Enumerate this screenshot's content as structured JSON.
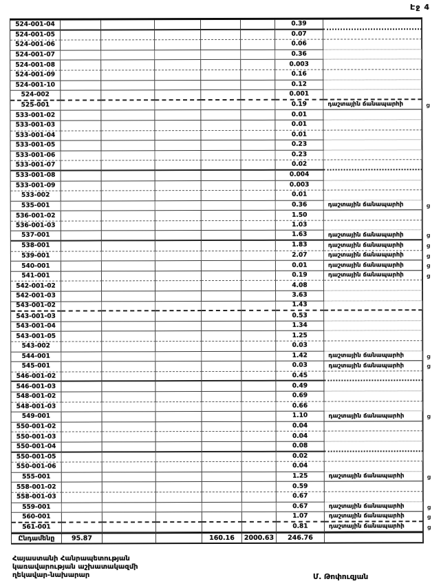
{
  "page": {
    "label": "Էջ 4"
  },
  "colors": {
    "paper": "#ffffff",
    "ink": "#111111",
    "grid_line": "#3c3c3c"
  },
  "note_text": "դաշտային ճանապարհի",
  "table": {
    "rows": [
      {
        "code": "524-001-04",
        "value": "0.39"
      },
      {
        "code": "524-001-05",
        "value": "0.07"
      },
      {
        "code": "524-001-06",
        "value": "0.06"
      },
      {
        "code": "524-001-07",
        "value": "0.36"
      },
      {
        "code": "524-001-08",
        "value": "0.003"
      },
      {
        "code": "524-001-09",
        "value": "0.16"
      },
      {
        "code": "524-001-10",
        "value": "0.12"
      },
      {
        "code": "524-002",
        "value": "0.001"
      },
      {
        "code": "525-001",
        "value": "0.19",
        "note": "դաշտային ճանապարհի",
        "mark": "ց"
      },
      {
        "code": "533-001-02",
        "value": "0.01"
      },
      {
        "code": "533-001-03",
        "value": "0.01"
      },
      {
        "code": "533-001-04",
        "value": "0.01"
      },
      {
        "code": "533-001-05",
        "value": "0.23"
      },
      {
        "code": "533-001-06",
        "value": "0.23"
      },
      {
        "code": "533-001-07",
        "value": "0.02"
      },
      {
        "code": "533-001-08",
        "value": "0.004"
      },
      {
        "code": "533-001-09",
        "value": "0.003"
      },
      {
        "code": "533-002",
        "value": "0.01"
      },
      {
        "code": "535-001",
        "value": "0.36",
        "note": "դաշտային ճանապարհի",
        "mark": "ց"
      },
      {
        "code": "536-001-02",
        "value": "1.50"
      },
      {
        "code": "536-001-03",
        "value": "1.03"
      },
      {
        "code": "537-001",
        "value": "1.63",
        "note": "դաշտային ճանապարհի",
        "mark": "ց"
      },
      {
        "code": "538-001",
        "value": "1.83",
        "note": "դաշտային ճանապարհի",
        "mark": "ց"
      },
      {
        "code": "539-001",
        "value": "2.07",
        "note": "դաշտային ճանապարհի",
        "mark": "ց"
      },
      {
        "code": "540-001",
        "value": "0.01",
        "note": "դաշտային ճանապարհի",
        "mark": "ց"
      },
      {
        "code": "541-001",
        "value": "0.19",
        "note": "դաշտային ճանապարհի",
        "mark": "ց"
      },
      {
        "code": "542-001-02",
        "value": "4.08"
      },
      {
        "code": "542-001-03",
        "value": "3.63"
      },
      {
        "code": "543-001-02",
        "value": "1.43"
      },
      {
        "code": "543-001-03",
        "value": "0.53"
      },
      {
        "code": "543-001-04",
        "value": "1.34"
      },
      {
        "code": "543-001-05",
        "value": "1.25"
      },
      {
        "code": "543-002",
        "value": "0.03"
      },
      {
        "code": "544-001",
        "value": "1.42",
        "note": "դաշտային ճանապարհի",
        "mark": "ց"
      },
      {
        "code": "545-001",
        "value": "0.03",
        "note": "դաշտային ճանապարհի",
        "mark": "ց"
      },
      {
        "code": "546-001-02",
        "value": "0.45"
      },
      {
        "code": "546-001-03",
        "value": "0.49"
      },
      {
        "code": "548-001-02",
        "value": "0.69"
      },
      {
        "code": "548-001-03",
        "value": "0.66"
      },
      {
        "code": "549-001",
        "value": "1.10",
        "note": "դաշտային ճանապարհի",
        "mark": "ց"
      },
      {
        "code": "550-001-02",
        "value": "0.04"
      },
      {
        "code": "550-001-03",
        "value": "0.04"
      },
      {
        "code": "550-001-04",
        "value": "0.08"
      },
      {
        "code": "550-001-05",
        "value": "0.02"
      },
      {
        "code": "550-001-06",
        "value": "0.04"
      },
      {
        "code": "555-001",
        "value": "1.25",
        "note": "դաշտային ճանապարհի",
        "mark": "ց"
      },
      {
        "code": "558-001-02",
        "value": "0.59"
      },
      {
        "code": "558-001-03",
        "value": "0.67"
      },
      {
        "code": "559-001",
        "value": "0.67",
        "note": "դաշտային ճանապարհի",
        "mark": "ց"
      },
      {
        "code": "560-001",
        "value": "1.07",
        "note": "դաշտային ճանապարհի",
        "mark": "ց"
      },
      {
        "code": "561-001",
        "value": "0.81",
        "note": "դաշտային ճանապարհի",
        "mark": "ց"
      }
    ],
    "totals": {
      "label": "Ընդամենը",
      "col2": "95.87",
      "col5": "160.16",
      "col6": "2000.63",
      "value": "246.76"
    }
  },
  "footer": {
    "line1": "Հայաստանի Հանրապետության",
    "line2": "կառավարության աշխատակազմի",
    "line3": "ղեկավար-նախարար",
    "signature": "Մ. Թոփուզյան"
  }
}
